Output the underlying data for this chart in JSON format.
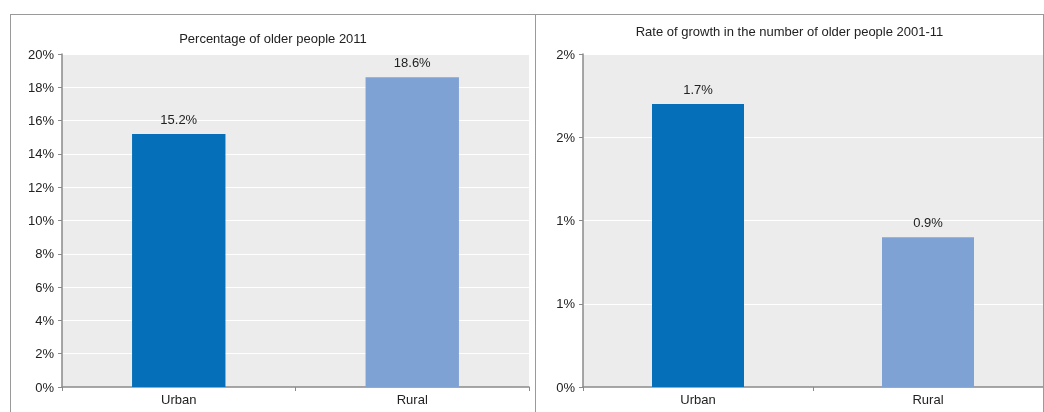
{
  "chart_data": [
    {
      "type": "bar",
      "title": "Percentage of older people 2011",
      "categories": [
        "Urban",
        "Rural"
      ],
      "values": [
        15.2,
        18.6
      ],
      "colors": [
        "#0570b9",
        "#7fa2d4"
      ],
      "value_labels": [
        "15.2%",
        "18.6%"
      ],
      "ylim": [
        0,
        20
      ],
      "yticks": [
        {
          "value": 0,
          "label": "0%"
        },
        {
          "value": 2,
          "label": "2%"
        },
        {
          "value": 4,
          "label": "4%"
        },
        {
          "value": 6,
          "label": "6%"
        },
        {
          "value": 8,
          "label": "8%"
        },
        {
          "value": 10,
          "label": "10%"
        },
        {
          "value": 12,
          "label": "12%"
        },
        {
          "value": 14,
          "label": "14%"
        },
        {
          "value": 16,
          "label": "16%"
        },
        {
          "value": 18,
          "label": "18%"
        },
        {
          "value": 20,
          "label": "20%"
        }
      ],
      "grid": "y"
    },
    {
      "type": "bar",
      "title": "Rate of growth in the number of older people 2001-11",
      "categories": [
        "Urban",
        "Rural"
      ],
      "values": [
        1.7,
        0.9
      ],
      "colors": [
        "#0570b9",
        "#7fa2d4"
      ],
      "value_labels": [
        "1.7%",
        "0.9%"
      ],
      "ylim": [
        0,
        2
      ],
      "yticks": [
        {
          "value": 0,
          "label": "0%"
        },
        {
          "value": 0.5,
          "label": "1%"
        },
        {
          "value": 1,
          "label": "1%"
        },
        {
          "value": 1.5,
          "label": "2%"
        },
        {
          "value": 2,
          "label": "2%"
        }
      ],
      "grid": "y"
    }
  ]
}
